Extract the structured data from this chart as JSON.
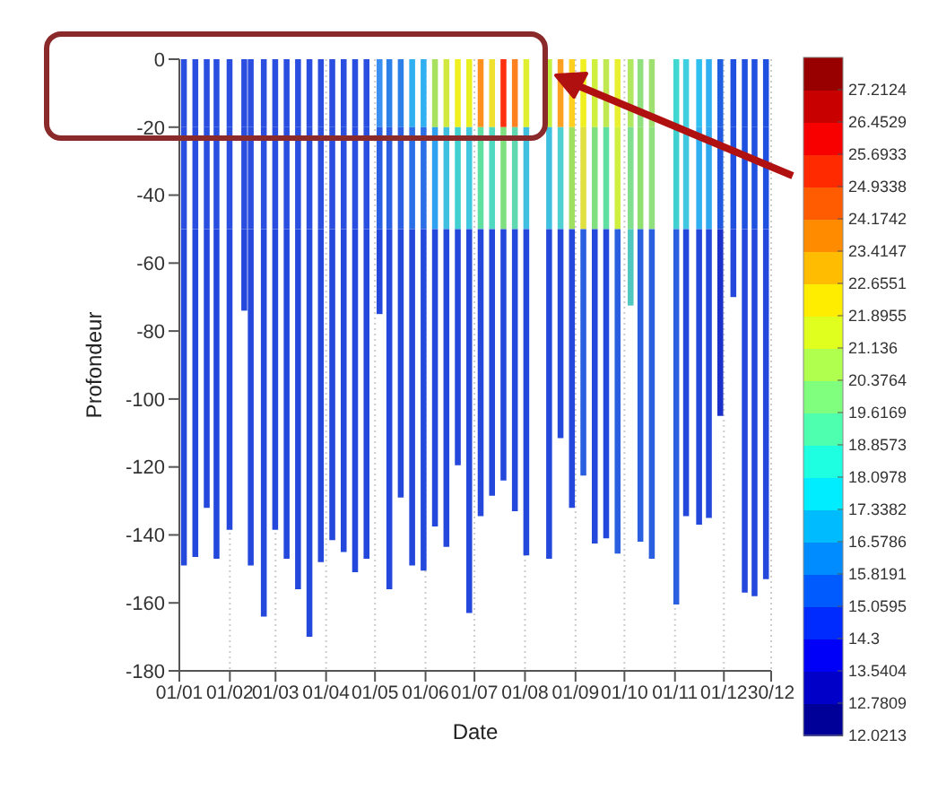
{
  "chart_data": {
    "type": "bar",
    "stacked": true,
    "xlabel": "Date",
    "ylabel": "Profondeur",
    "grid": "x",
    "x": [
      "--01-04",
      "--01-11",
      "--01-18",
      "--01-24",
      "--02-01",
      "--02-10",
      "--02-14",
      "--02-22",
      "--03-01",
      "--03-08",
      "--03-15",
      "--03-22",
      "--03-29",
      "--04-05",
      "--04-12",
      "--04-19",
      "--04-26",
      "--05-04",
      "--05-10",
      "--05-17",
      "--05-24",
      "--05-31",
      "--06-07",
      "--06-14",
      "--06-21",
      "--06-28",
      "--07-05",
      "--07-12",
      "--07-19",
      "--07-26",
      "--08-02",
      "--08-16",
      "--08-23",
      "--08-30",
      "--09-06",
      "--09-13",
      "--09-20",
      "--09-27",
      "--10-05",
      "--10-11",
      "--10-18",
      "--11-02",
      "--11-08",
      "--11-16",
      "--11-22",
      "--11-29",
      "--12-07",
      "--12-14",
      "--12-20",
      "--12-27"
    ],
    "series": [
      {
        "values": [
          -20,
          -20,
          -20,
          -20,
          -20,
          -20,
          -20,
          -20,
          -20,
          -20,
          -20,
          -20,
          -20,
          -20,
          -20,
          -20,
          -20,
          -20,
          -20,
          -20,
          -20,
          -20,
          -20,
          -20,
          -20,
          -20,
          -20,
          -20,
          -20,
          -20,
          -20,
          -20,
          -20,
          -20,
          -20,
          -20,
          -20,
          -20,
          -20,
          -20,
          -20,
          -20,
          -20,
          -20,
          -20,
          -20,
          -20,
          -20,
          -20,
          -20
        ],
        "colors": [
          "#2a4fe0",
          "#2a4fe0",
          "#2a4fe0",
          "#2a4fe0",
          "#2a4fe0",
          "#2a4fe0",
          "#2a4fe0",
          "#2a4fe0",
          "#2a4fe0",
          "#2a4fe0",
          "#2a4fe0",
          "#2a4fe0",
          "#2a4fe0",
          "#2a4fe0",
          "#2a4fe0",
          "#2a4fe0",
          "#2a4fe0",
          "#3a8ff0",
          "#2c80e8",
          "#2c80e8",
          "#30b0f0",
          "#30b0f0",
          "#a8e060",
          "#d0e840",
          "#f0f020",
          "#e8f020",
          "#ff9020",
          "#f0e030",
          "#ff3010",
          "#ff8020",
          "#e0f030",
          "#c0f040",
          "#ffa020",
          "#ffd020",
          "#f0f020",
          "#d0f040",
          "#c0e850",
          "#e8f030",
          "#b0e860",
          "#90e080",
          "#a0e070",
          "#40d8d0",
          "#40d0e0",
          "#30c0f0",
          "#30b0f0",
          "#2060e0",
          "#2050e0",
          "#2050e0",
          "#2050e0",
          "#2050e0"
        ]
      },
      {
        "values": [
          -30,
          -30,
          -30,
          -30,
          -30,
          -30,
          -30,
          -30,
          -30,
          -30,
          -30,
          -30,
          -30,
          -30,
          -30,
          -30,
          -30,
          -30,
          -30,
          -30,
          -30,
          -30,
          -30,
          -30,
          -30,
          -30,
          -30,
          -30,
          -30,
          -30,
          -30,
          -30,
          -30,
          -30,
          -30,
          -30,
          -30,
          -30,
          -30,
          -30,
          -30,
          -30,
          -30,
          -30,
          -30,
          -30,
          -30,
          -30,
          -30,
          -30
        ],
        "colors": [
          "#2a4fe0",
          "#2a4fe0",
          "#2a4fe0",
          "#2a4fe0",
          "#2a4fe0",
          "#2a4fe0",
          "#2a4fe0",
          "#2a4fe0",
          "#2a4fe0",
          "#2a4fe0",
          "#2a4fe0",
          "#2a4fe0",
          "#2a4fe0",
          "#2a4fe0",
          "#2a4fe0",
          "#2a4fe0",
          "#2a4fe0",
          "#2a5fe4",
          "#2a5fe4",
          "#2a5fe4",
          "#2a6fe8",
          "#2a6fe8",
          "#30a0f0",
          "#40c0e0",
          "#40d0d0",
          "#40c8e0",
          "#60e0a0",
          "#50d8c0",
          "#80e080",
          "#60d8b0",
          "#40c0e0",
          "#40c0e0",
          "#50d0d0",
          "#a0e060",
          "#e0e040",
          "#80e080",
          "#60e0a0",
          "#d0f040",
          "#80e090",
          "#90e070",
          "#90e080",
          "#40d0d0",
          "#40c8e0",
          "#30b0f0",
          "#30a8f0",
          "#2058e0",
          "#2050e0",
          "#2050e0",
          "#2050e0",
          "#2050e0"
        ]
      },
      {
        "values": [
          -99,
          -96.5,
          -82,
          -97,
          -88.5,
          -24,
          -99,
          -114,
          -88.5,
          -97,
          -106,
          -120,
          -98,
          -91.5,
          -95,
          -101,
          -97,
          -25,
          -106,
          -79,
          -99,
          -100.5,
          -87.5,
          -93.5,
          -69.5,
          -113,
          -84.5,
          -78.5,
          -74,
          -83,
          -96,
          -97,
          -61.5,
          -82,
          -72.5,
          -92.5,
          -91,
          -95.5,
          -22.5,
          -92,
          -97,
          -110.5,
          -84.5,
          -87,
          -85,
          -55,
          -20,
          -107,
          -108,
          -103
        ],
        "colors": [
          "#2448dc",
          "#2448dc",
          "#2448dc",
          "#2448dc",
          "#2448dc",
          "#2448dc",
          "#2448dc",
          "#2448dc",
          "#2448dc",
          "#2448dc",
          "#2448dc",
          "#2448dc",
          "#2448dc",
          "#2448dc",
          "#2448dc",
          "#2448dc",
          "#2448dc",
          "#2448dc",
          "#2448dc",
          "#2448dc",
          "#2448dc",
          "#2448dc",
          "#2448dc",
          "#2448dc",
          "#2448dc",
          "#2448dc",
          "#2448dc",
          "#2448dc",
          "#2448dc",
          "#2448dc",
          "#2448dc",
          "#2448dc",
          "#2448dc",
          "#2448dc",
          "#2a60e0",
          "#2448dc",
          "#2448dc",
          "#2a60e0",
          "#50c8c0",
          "#2a60e0",
          "#2a60e0",
          "#2a60e0",
          "#2448dc",
          "#2448dc",
          "#2448dc",
          "#1a30c8",
          "#2448dc",
          "#2448dc",
          "#2448dc",
          "#2448dc"
        ]
      }
    ],
    "xlim": [
      "--01-01",
      "--12-30"
    ],
    "xticks": [
      {
        "value": "--01-01",
        "label": "01/01"
      },
      {
        "value": "--02-01",
        "label": "01/02"
      },
      {
        "value": "--03-01",
        "label": "01/03"
      },
      {
        "value": "--04-01",
        "label": "01/04"
      },
      {
        "value": "--05-01",
        "label": "01/05"
      },
      {
        "value": "--06-01",
        "label": "01/06"
      },
      {
        "value": "--07-01",
        "label": "01/07"
      },
      {
        "value": "--08-01",
        "label": "01/08"
      },
      {
        "value": "--09-01",
        "label": "01/09"
      },
      {
        "value": "--10-01",
        "label": "01/10"
      },
      {
        "value": "--11-01",
        "label": "01/11"
      },
      {
        "value": "--12-01",
        "label": "01/12"
      },
      {
        "value": "--12-30",
        "label": "30/12"
      }
    ],
    "ylim": [
      -180,
      0
    ],
    "yticks": [
      -180,
      -160,
      -140,
      -120,
      -100,
      -80,
      -60,
      -40,
      -20,
      0
    ],
    "clim": [
      12.0213,
      27.9719
    ],
    "cticks": [
      12.0213,
      12.7809,
      13.5404,
      14.3,
      15.0595,
      15.8191,
      16.5786,
      17.3382,
      18.0978,
      18.8573,
      19.6169,
      20.3764,
      21.136,
      21.8955,
      22.6551,
      23.4147,
      24.1742,
      24.9338,
      25.6933,
      26.4529,
      27.2124
    ]
  }
}
